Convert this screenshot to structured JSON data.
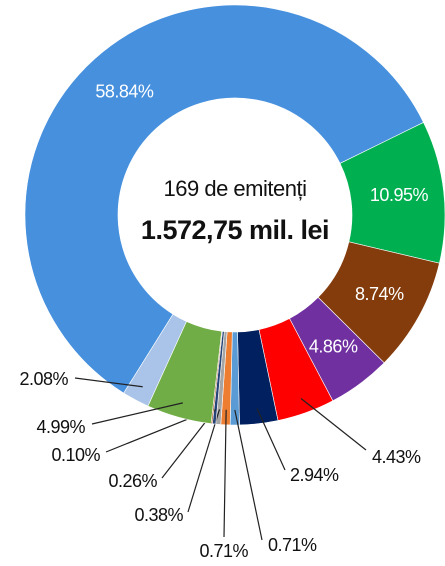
{
  "chart_data": {
    "type": "donut",
    "center_text": [
      "169 de emitenți",
      "1.572,75 mil. lei"
    ],
    "values": [
      58.84,
      10.95,
      8.74,
      4.86,
      4.43,
      2.94,
      0.71,
      0.71,
      0.38,
      0.26,
      0.1,
      4.99,
      2.08
    ],
    "value_labels": [
      "58.84%",
      "10.95%",
      "8.74%",
      "4.86%",
      "4.43%",
      "2.94%",
      "0.71%",
      "0.71%",
      "0.38%",
      "0.26%",
      "0.10%",
      "4.99%",
      "2.08%"
    ],
    "colors": [
      "#4690de",
      "#00b050",
      "#843c0c",
      "#7030a0",
      "#ff0000",
      "#002060",
      "#5b9bd5",
      "#ed7d31",
      "#a5a5a5",
      "#264478",
      "#9e480e",
      "#70ad47",
      "#a9c4e8"
    ]
  }
}
